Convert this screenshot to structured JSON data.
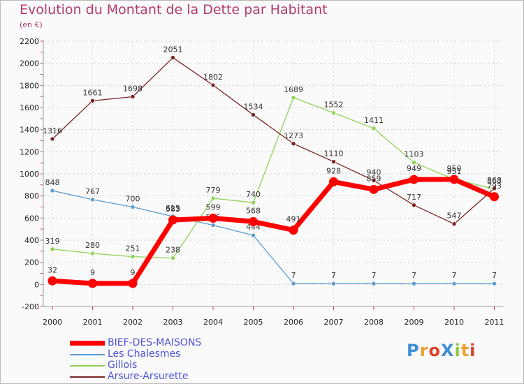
{
  "header": {
    "title": "Evolution du Montant de la Dette par Habitant",
    "subtitle": "(en €)"
  },
  "logo": {
    "text": "ProXiti",
    "letters": [
      "P",
      "r",
      "o",
      "X",
      "i",
      "t",
      "i"
    ],
    "colors": [
      "#3f8fd6",
      "#f0a030",
      "#e0402a",
      "#3f8fd6",
      "#8cc63f",
      "#f0a030",
      "#e0402a"
    ]
  },
  "chart_data": {
    "type": "line",
    "title": "Evolution du Montant de la Dette par Habitant",
    "ylabel": "(en €)",
    "xlabel": "",
    "x": [
      "2000",
      "2001",
      "2002",
      "2003",
      "2004",
      "2005",
      "2006",
      "2007",
      "2008",
      "2009",
      "2010",
      "2011"
    ],
    "ylim": [
      -200,
      2200
    ],
    "yticks": [
      -200,
      0,
      200,
      400,
      600,
      800,
      1000,
      1200,
      1400,
      1600,
      1800,
      2000,
      2200
    ],
    "grid": "horizontal dashed",
    "legend_position": "bottom-left",
    "series": [
      {
        "name": "Les Chalesmes",
        "color": "#5b9bd1",
        "values": [
          848,
          767,
          700,
          615,
          536,
          444,
          7,
          7,
          7,
          7,
          7,
          7
        ],
        "labels": [
          "848",
          "767",
          "700",
          "615",
          "536",
          "444",
          "7",
          "7",
          "7",
          "7",
          "7",
          "7"
        ]
      },
      {
        "name": "Gillois",
        "color": "#8ed256",
        "values": [
          319,
          280,
          251,
          238,
          779,
          740,
          1689,
          1552,
          1411,
          1103,
          951,
          863
        ],
        "labels": [
          "319",
          "280",
          "251",
          "238",
          "779",
          "740",
          "1689",
          "1552",
          "1411",
          "1103",
          "951",
          "863"
        ]
      },
      {
        "name": "Arsure-Arsurette",
        "color": "#7a2424",
        "values": [
          1316,
          1661,
          1698,
          2051,
          1802,
          1534,
          1273,
          1110,
          940,
          717,
          547,
          868
        ],
        "labels": [
          "1316",
          "1661",
          "1698",
          "2051",
          "1802",
          "1534",
          "1273",
          "1110",
          "940",
          "717",
          "547",
          "868"
        ]
      },
      {
        "name": "BIEF-DES-MAISONS",
        "color": "#ff0000",
        "values": [
          32,
          9,
          9,
          583,
          599,
          568,
          491,
          928,
          859,
          949,
          950,
          793
        ],
        "labels": [
          "32",
          "9",
          "9",
          "583",
          "599",
          "568",
          "491",
          "928",
          "859",
          "949",
          "950",
          "793"
        ]
      }
    ],
    "legend_order": [
      "BIEF-DES-MAISONS",
      "Les Chalesmes",
      "Gillois",
      "Arsure-Arsurette"
    ]
  }
}
